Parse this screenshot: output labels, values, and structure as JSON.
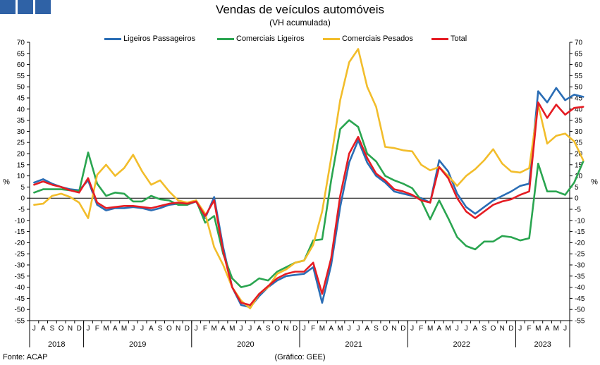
{
  "title": "Vendas de veículos automóveis",
  "subtitle": "(VH acumulada)",
  "source": "Fonte: ACAP",
  "credit": "(Gráfico: GEE)",
  "chart_data": {
    "type": "line",
    "ylabel": "%",
    "ylim": [
      -55,
      70
    ],
    "yticks": [
      70,
      65,
      60,
      55,
      50,
      45,
      40,
      35,
      30,
      25,
      20,
      15,
      10,
      5,
      0,
      -5,
      -10,
      -15,
      -20,
      -25,
      -30,
      -35,
      -40,
      -45,
      -50,
      -55
    ],
    "grid": false,
    "legend": "top",
    "month_labels": [
      "J",
      "A",
      "S",
      "O",
      "N",
      "D",
      "J",
      "F",
      "M",
      "A",
      "M",
      "J",
      "J",
      "A",
      "S",
      "O",
      "N",
      "D",
      "J",
      "F",
      "M",
      "A",
      "M",
      "J",
      "J",
      "A",
      "S",
      "O",
      "N",
      "D",
      "J",
      "F",
      "M",
      "A",
      "M",
      "J",
      "J",
      "A",
      "S",
      "O",
      "N",
      "D",
      "J",
      "F",
      "M",
      "A",
      "M",
      "J",
      "J",
      "A",
      "S",
      "O",
      "N",
      "D",
      "J",
      "F",
      "M",
      "A",
      "M",
      "J"
    ],
    "years": [
      {
        "label": "2018",
        "months": 6
      },
      {
        "label": "2019",
        "months": 12
      },
      {
        "label": "2020",
        "months": 12
      },
      {
        "label": "2021",
        "months": 12
      },
      {
        "label": "2022",
        "months": 12
      },
      {
        "label": "2023",
        "months": 6
      }
    ],
    "series": [
      {
        "name": "Ligeiros Passageiros",
        "color": "#2a6db5",
        "values": [
          7,
          8.5,
          6.5,
          5,
          4,
          3.5,
          8,
          -3,
          -5.5,
          -4.5,
          -4.5,
          -4,
          -4.5,
          -5.5,
          -4.5,
          -3,
          -2.5,
          -3,
          -1.5,
          -9,
          0.5,
          -22,
          -40,
          -48,
          -49,
          -44,
          -40,
          -37,
          -35,
          -34.5,
          -34,
          -31,
          -47,
          -30,
          -4,
          16,
          26,
          16,
          10,
          7,
          3,
          2,
          1,
          0,
          -2,
          17,
          12,
          2,
          -4,
          -7,
          -4,
          -1,
          1,
          3,
          5.5,
          6.5,
          48,
          43,
          49.5,
          44,
          46.5,
          45.5
        ]
      },
      {
        "name": "Comerciais Ligeiros",
        "color": "#2aa550",
        "values": [
          2.5,
          4,
          4,
          4,
          3.5,
          3,
          20.5,
          6.5,
          1,
          2.5,
          2,
          -1.5,
          -1.5,
          1,
          -0.5,
          -1,
          -3,
          -3,
          -1,
          -11,
          -8,
          -25,
          -36,
          -40,
          -39,
          -36,
          -37,
          -33,
          -31,
          -29,
          -28,
          -19,
          -18.5,
          8,
          31,
          35,
          32,
          20,
          16.5,
          10,
          8,
          6.5,
          4.5,
          -1,
          -9.5,
          -1,
          -9,
          -17.5,
          -21.5,
          -23,
          -19.5,
          -19.5,
          -17,
          -17.5,
          -19,
          -18,
          15.5,
          3,
          3,
          1.5,
          7,
          16.5
        ]
      },
      {
        "name": "Comerciais Pesados",
        "color": "#f2bd2b",
        "values": [
          -3,
          -2.5,
          1,
          2,
          0.5,
          -2,
          -9,
          10.5,
          15,
          10,
          13.5,
          19.5,
          12,
          6,
          8,
          3,
          -1,
          -2,
          -1,
          -7,
          -22,
          -30,
          -40,
          -46,
          -49.5,
          -43,
          -40,
          -34,
          -32,
          -29,
          -28,
          -21,
          -6,
          18,
          44,
          61,
          67,
          50,
          41,
          23,
          22.5,
          21.5,
          21,
          15,
          12.5,
          14,
          10,
          5.5,
          10,
          13,
          17,
          22,
          15.5,
          12,
          11.5,
          13.5,
          42,
          24.5,
          28,
          29,
          25.5,
          17
        ]
      },
      {
        "name": "Total",
        "color": "#e51c23",
        "values": [
          6,
          7.5,
          6,
          5,
          3.5,
          2.5,
          9,
          -2,
          -4.5,
          -4,
          -3.5,
          -3.5,
          -4,
          -4.5,
          -3.5,
          -2.5,
          -2,
          -2.5,
          -1.5,
          -8,
          -1,
          -24,
          -40,
          -47,
          -48,
          -43,
          -39.5,
          -36,
          -34,
          -33,
          -33,
          -29,
          -43,
          -27,
          1,
          20,
          27.5,
          18,
          11,
          8,
          4,
          3,
          1.5,
          -1,
          -2,
          14,
          9,
          0,
          -6,
          -9,
          -6,
          -3,
          -1.5,
          -0.5,
          1.5,
          3,
          43,
          36,
          42,
          37.5,
          40.5,
          41
        ]
      }
    ]
  }
}
